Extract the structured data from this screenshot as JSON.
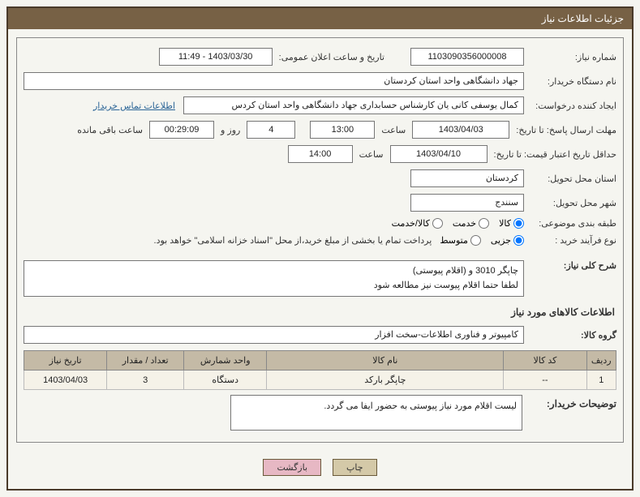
{
  "header": {
    "title": "جزئیات اطلاعات نیاز"
  },
  "fields": {
    "need_number": {
      "label": "شماره نیاز:",
      "value": "1103090356000008"
    },
    "announce_datetime": {
      "label": "تاریخ و ساعت اعلان عمومی:",
      "value": "1403/03/30 - 11:49"
    },
    "buyer_org": {
      "label": "نام دستگاه خریدار:",
      "value": "جهاد دانشگاهی واحد استان کردستان"
    },
    "requester": {
      "label": "ایجاد کننده درخواست:",
      "value": "کمال یوسفی کانی یان کارشناس حسابداری جهاد دانشگاهی واحد استان کردس",
      "contact": "اطلاعات تماس خریدار"
    },
    "response_deadline": {
      "label": "مهلت ارسال پاسخ:",
      "sub_until": "تا تاریخ:",
      "date": "1403/04/03",
      "time_label": "ساعت",
      "time": "13:00",
      "days": "4",
      "days_label": "روز و",
      "remaining": "00:29:09",
      "remaining_label": "ساعت باقی مانده"
    },
    "validity_min": {
      "label": "حداقل تاریخ اعتبار قیمت:",
      "sub_until": "تا تاریخ:",
      "date": "1403/04/10",
      "time_label": "ساعت",
      "time": "14:00"
    },
    "delivery_province": {
      "label": "استان محل تحویل:",
      "value": "کردستان"
    },
    "delivery_city": {
      "label": "شهر محل تحویل:",
      "value": "سنندج"
    },
    "category": {
      "label": "طبقه بندی موضوعی:",
      "options": [
        "کالا",
        "خدمت",
        "کالا/خدمت"
      ],
      "selected": "کالا"
    },
    "purchase_type": {
      "label": "نوع فرآیند خرید :",
      "options": [
        "جزیی",
        "متوسط"
      ],
      "selected": "جزیی",
      "note": "پرداخت تمام یا بخشی از مبلغ خرید،از محل \"اسناد خزانه اسلامی\" خواهد بود."
    },
    "overall_desc": {
      "label": "شرح کلی نیاز:",
      "line1": "چاپگر 3010 و (اقلام پیوستی)",
      "line2": "لطفا حتما اقلام پیوست نیز مطالعه شود"
    },
    "items_section_title": "اطلاعات کالاهای مورد نیاز",
    "goods_group": {
      "label": "گروه کالا:",
      "value": "کامپیوتر و فناوری اطلاعات-سخت افزار"
    },
    "table": {
      "headers": [
        "ردیف",
        "کد کالا",
        "نام کالا",
        "واحد شمارش",
        "تعداد / مقدار",
        "تاریخ نیاز"
      ],
      "rows": [
        [
          "1",
          "--",
          "چاپگر بارکد",
          "دستگاه",
          "3",
          "1403/04/03"
        ]
      ]
    },
    "buyer_desc": {
      "label": "توضیحات خریدار:",
      "value": "لیست  اقلام مورد نیاز پیوستی به حضور ایفا می گردد."
    }
  },
  "buttons": {
    "print": "چاپ",
    "back": "بازگشت"
  },
  "colors": {
    "header_bg": "#776145",
    "frame_border": "#4a3a2a",
    "th_bg": "#c4baa6",
    "td_bg": "#f5f2e8",
    "btn_print_bg": "#d4c9a8",
    "btn_back_bg": "#e7b8c4",
    "link": "#2a6496"
  }
}
